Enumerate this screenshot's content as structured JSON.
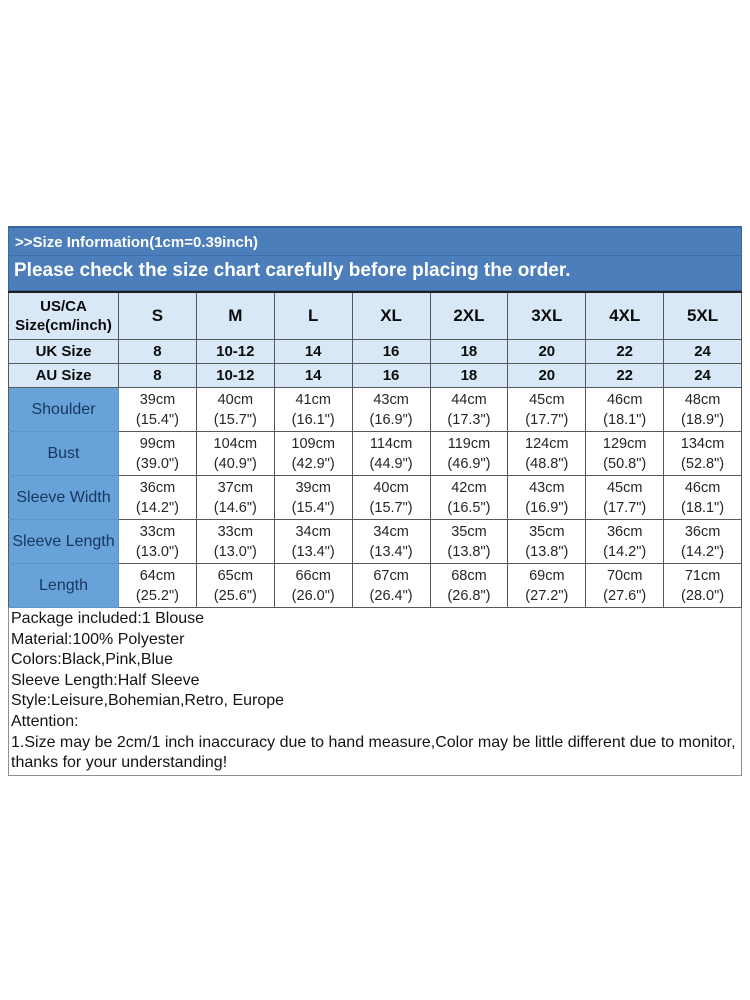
{
  "banner": {
    "line1": ">>Size Information(1cm=0.39inch)",
    "line2": "Please check the size chart carefully before placing the order."
  },
  "size_table": {
    "corner": {
      "line1": "US/CA",
      "line2": "Size(cm/inch)"
    },
    "size_columns": [
      "S",
      "M",
      "L",
      "XL",
      "2XL",
      "3XL",
      "4XL",
      "5XL"
    ],
    "region_rows": [
      {
        "label": "UK Size",
        "values": [
          "8",
          "10-12",
          "14",
          "16",
          "18",
          "20",
          "22",
          "24"
        ]
      },
      {
        "label": "AU  Size",
        "values": [
          "8",
          "10-12",
          "14",
          "16",
          "18",
          "20",
          "22",
          "24"
        ]
      }
    ],
    "measurement_rows": [
      {
        "label": "Shoulder",
        "values": [
          {
            "cm": "39cm",
            "inch": "(15.4\")"
          },
          {
            "cm": "40cm",
            "inch": "(15.7\")"
          },
          {
            "cm": "41cm",
            "inch": "(16.1\")"
          },
          {
            "cm": "43cm",
            "inch": "(16.9\")"
          },
          {
            "cm": "44cm",
            "inch": "(17.3\")"
          },
          {
            "cm": "45cm",
            "inch": "(17.7\")"
          },
          {
            "cm": "46cm",
            "inch": "(18.1\")"
          },
          {
            "cm": "48cm",
            "inch": "(18.9\")"
          }
        ]
      },
      {
        "label": "Bust",
        "values": [
          {
            "cm": "99cm",
            "inch": "(39.0\")"
          },
          {
            "cm": "104cm",
            "inch": "(40.9\")"
          },
          {
            "cm": "109cm",
            "inch": "(42.9\")"
          },
          {
            "cm": "114cm",
            "inch": "(44.9\")"
          },
          {
            "cm": "119cm",
            "inch": "(46.9\")"
          },
          {
            "cm": "124cm",
            "inch": "(48.8\")"
          },
          {
            "cm": "129cm",
            "inch": "(50.8\")"
          },
          {
            "cm": "134cm",
            "inch": "(52.8\")"
          }
        ]
      },
      {
        "label": "Sleeve Width",
        "values": [
          {
            "cm": "36cm",
            "inch": "(14.2\")"
          },
          {
            "cm": "37cm",
            "inch": "(14.6\")"
          },
          {
            "cm": "39cm",
            "inch": "(15.4\")"
          },
          {
            "cm": "40cm",
            "inch": "(15.7\")"
          },
          {
            "cm": "42cm",
            "inch": "(16.5\")"
          },
          {
            "cm": "43cm",
            "inch": "(16.9\")"
          },
          {
            "cm": "45cm",
            "inch": "(17.7\")"
          },
          {
            "cm": "46cm",
            "inch": "(18.1\")"
          }
        ]
      },
      {
        "label": "Sleeve Length",
        "values": [
          {
            "cm": "33cm",
            "inch": "(13.0\")"
          },
          {
            "cm": "33cm",
            "inch": "(13.0\")"
          },
          {
            "cm": "34cm",
            "inch": "(13.4\")"
          },
          {
            "cm": "34cm",
            "inch": "(13.4\")"
          },
          {
            "cm": "35cm",
            "inch": "(13.8\")"
          },
          {
            "cm": "35cm",
            "inch": "(13.8\")"
          },
          {
            "cm": "36cm",
            "inch": "(14.2\")"
          },
          {
            "cm": "36cm",
            "inch": "(14.2\")"
          }
        ]
      },
      {
        "label": "Length",
        "values": [
          {
            "cm": "64cm",
            "inch": "(25.2\")"
          },
          {
            "cm": "65cm",
            "inch": "(25.6\")"
          },
          {
            "cm": "66cm",
            "inch": "(26.0\")"
          },
          {
            "cm": "67cm",
            "inch": "(26.4\")"
          },
          {
            "cm": "68cm",
            "inch": "(26.8\")"
          },
          {
            "cm": "69cm",
            "inch": "(27.2\")"
          },
          {
            "cm": "70cm",
            "inch": "(27.6\")"
          },
          {
            "cm": "71cm",
            "inch": "(28.0\")"
          }
        ]
      }
    ]
  },
  "details": {
    "lines": [
      "Package included:1 Blouse",
      "Material:100%  Polyester",
      "Colors:Black,Pink,Blue",
      "Sleeve Length:Half Sleeve",
      "Style:Leisure,Bohemian,Retro, Europe",
      "Attention:",
      "1.Size may be 2cm/1 inch inaccuracy due to hand measure,Color may be little different due to monitor,thanks for your understanding!"
    ]
  },
  "colors": {
    "banner-bg": "#4b7eba",
    "banner-border": "#38679f",
    "header-bg": "#d9e8f6",
    "label-bg": "#67a2d9",
    "label-text": "#17375e",
    "grid": "#595959"
  }
}
